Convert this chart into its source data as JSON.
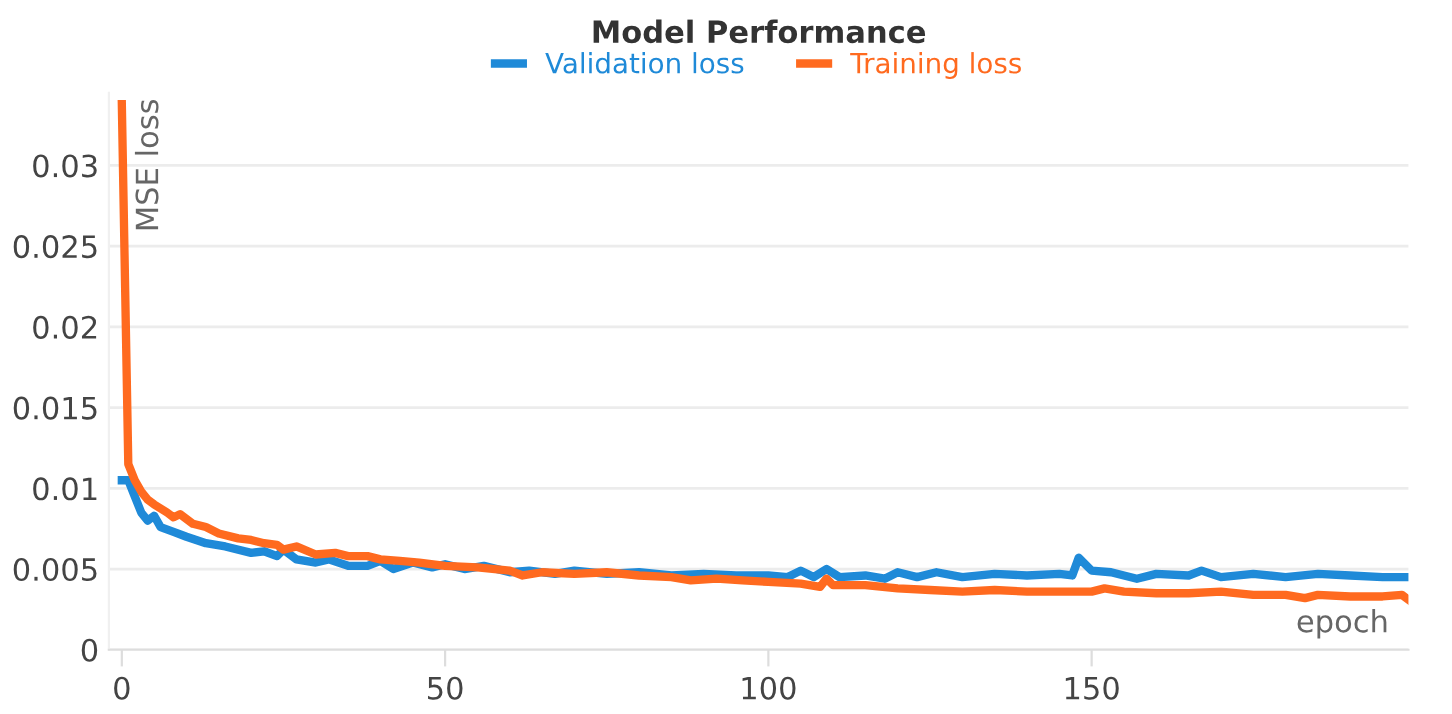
{
  "chart_data": {
    "type": "line",
    "title": "Model Performance",
    "xlabel": "epoch",
    "ylabel": "MSE loss",
    "xlim": [
      -2,
      199
    ],
    "xticks": [
      0,
      50,
      100,
      150
    ],
    "ylim": [
      0,
      0.0345
    ],
    "yticks": [
      0,
      0.005,
      0.01,
      0.015,
      0.02,
      0.025,
      0.03
    ],
    "grid": "y",
    "legend": "top",
    "marker": "none",
    "line_style": "solid",
    "series": [
      {
        "name": "Validation loss",
        "color": "#1f8ad8",
        "x": [
          0,
          1,
          2,
          3,
          4,
          5,
          6,
          8,
          10,
          13,
          16,
          20,
          22,
          24,
          25,
          27,
          30,
          32,
          35,
          38,
          40,
          42,
          45,
          48,
          50,
          53,
          56,
          60,
          63,
          67,
          70,
          75,
          80,
          85,
          90,
          95,
          100,
          103,
          105,
          107,
          109,
          111,
          115,
          118,
          120,
          123,
          126,
          130,
          135,
          140,
          145,
          147,
          148,
          150,
          153,
          157,
          160,
          165,
          167,
          170,
          175,
          180,
          185,
          190,
          195,
          199
        ],
        "values": [
          0.0105,
          0.0105,
          0.0095,
          0.0085,
          0.008,
          0.0083,
          0.0076,
          0.0073,
          0.007,
          0.0066,
          0.0064,
          0.006,
          0.0061,
          0.0058,
          0.0062,
          0.0056,
          0.0054,
          0.0056,
          0.0052,
          0.0052,
          0.0055,
          0.005,
          0.0054,
          0.0051,
          0.0053,
          0.005,
          0.0052,
          0.0048,
          0.0049,
          0.0047,
          0.0049,
          0.0047,
          0.0048,
          0.0046,
          0.0047,
          0.0046,
          0.0046,
          0.0045,
          0.0049,
          0.0045,
          0.005,
          0.0045,
          0.0046,
          0.0044,
          0.0048,
          0.0045,
          0.0048,
          0.0045,
          0.0047,
          0.0046,
          0.0047,
          0.0046,
          0.0057,
          0.0049,
          0.0048,
          0.0044,
          0.0047,
          0.0046,
          0.0049,
          0.0045,
          0.0047,
          0.0045,
          0.0047,
          0.0046,
          0.0045,
          0.0045
        ]
      },
      {
        "name": "Training loss",
        "color": "#ff6a1f",
        "x": [
          0,
          1,
          2,
          3,
          4,
          5,
          7,
          8,
          9,
          11,
          13,
          15,
          18,
          20,
          22,
          24,
          25,
          27,
          30,
          33,
          35,
          38,
          40,
          43,
          46,
          50,
          55,
          60,
          62,
          65,
          70,
          75,
          80,
          85,
          88,
          92,
          96,
          100,
          105,
          108,
          109,
          110,
          115,
          120,
          125,
          130,
          135,
          140,
          145,
          150,
          152,
          155,
          160,
          165,
          170,
          175,
          180,
          183,
          185,
          190,
          195,
          198,
          199
        ],
        "values": [
          0.0338,
          0.0115,
          0.0105,
          0.0098,
          0.0093,
          0.009,
          0.0085,
          0.0082,
          0.0084,
          0.0078,
          0.0076,
          0.0072,
          0.0069,
          0.0068,
          0.0066,
          0.0065,
          0.0062,
          0.0064,
          0.0059,
          0.006,
          0.0058,
          0.0058,
          0.0056,
          0.0055,
          0.0054,
          0.0052,
          0.0051,
          0.0049,
          0.0046,
          0.0048,
          0.0047,
          0.0048,
          0.0046,
          0.0045,
          0.0043,
          0.0044,
          0.0043,
          0.0042,
          0.0041,
          0.0039,
          0.0044,
          0.004,
          0.004,
          0.0038,
          0.0037,
          0.0036,
          0.0037,
          0.0036,
          0.0036,
          0.0036,
          0.0038,
          0.0036,
          0.0035,
          0.0035,
          0.0036,
          0.0034,
          0.0034,
          0.0032,
          0.0034,
          0.0033,
          0.0033,
          0.0034,
          0.0031
        ]
      }
    ]
  }
}
